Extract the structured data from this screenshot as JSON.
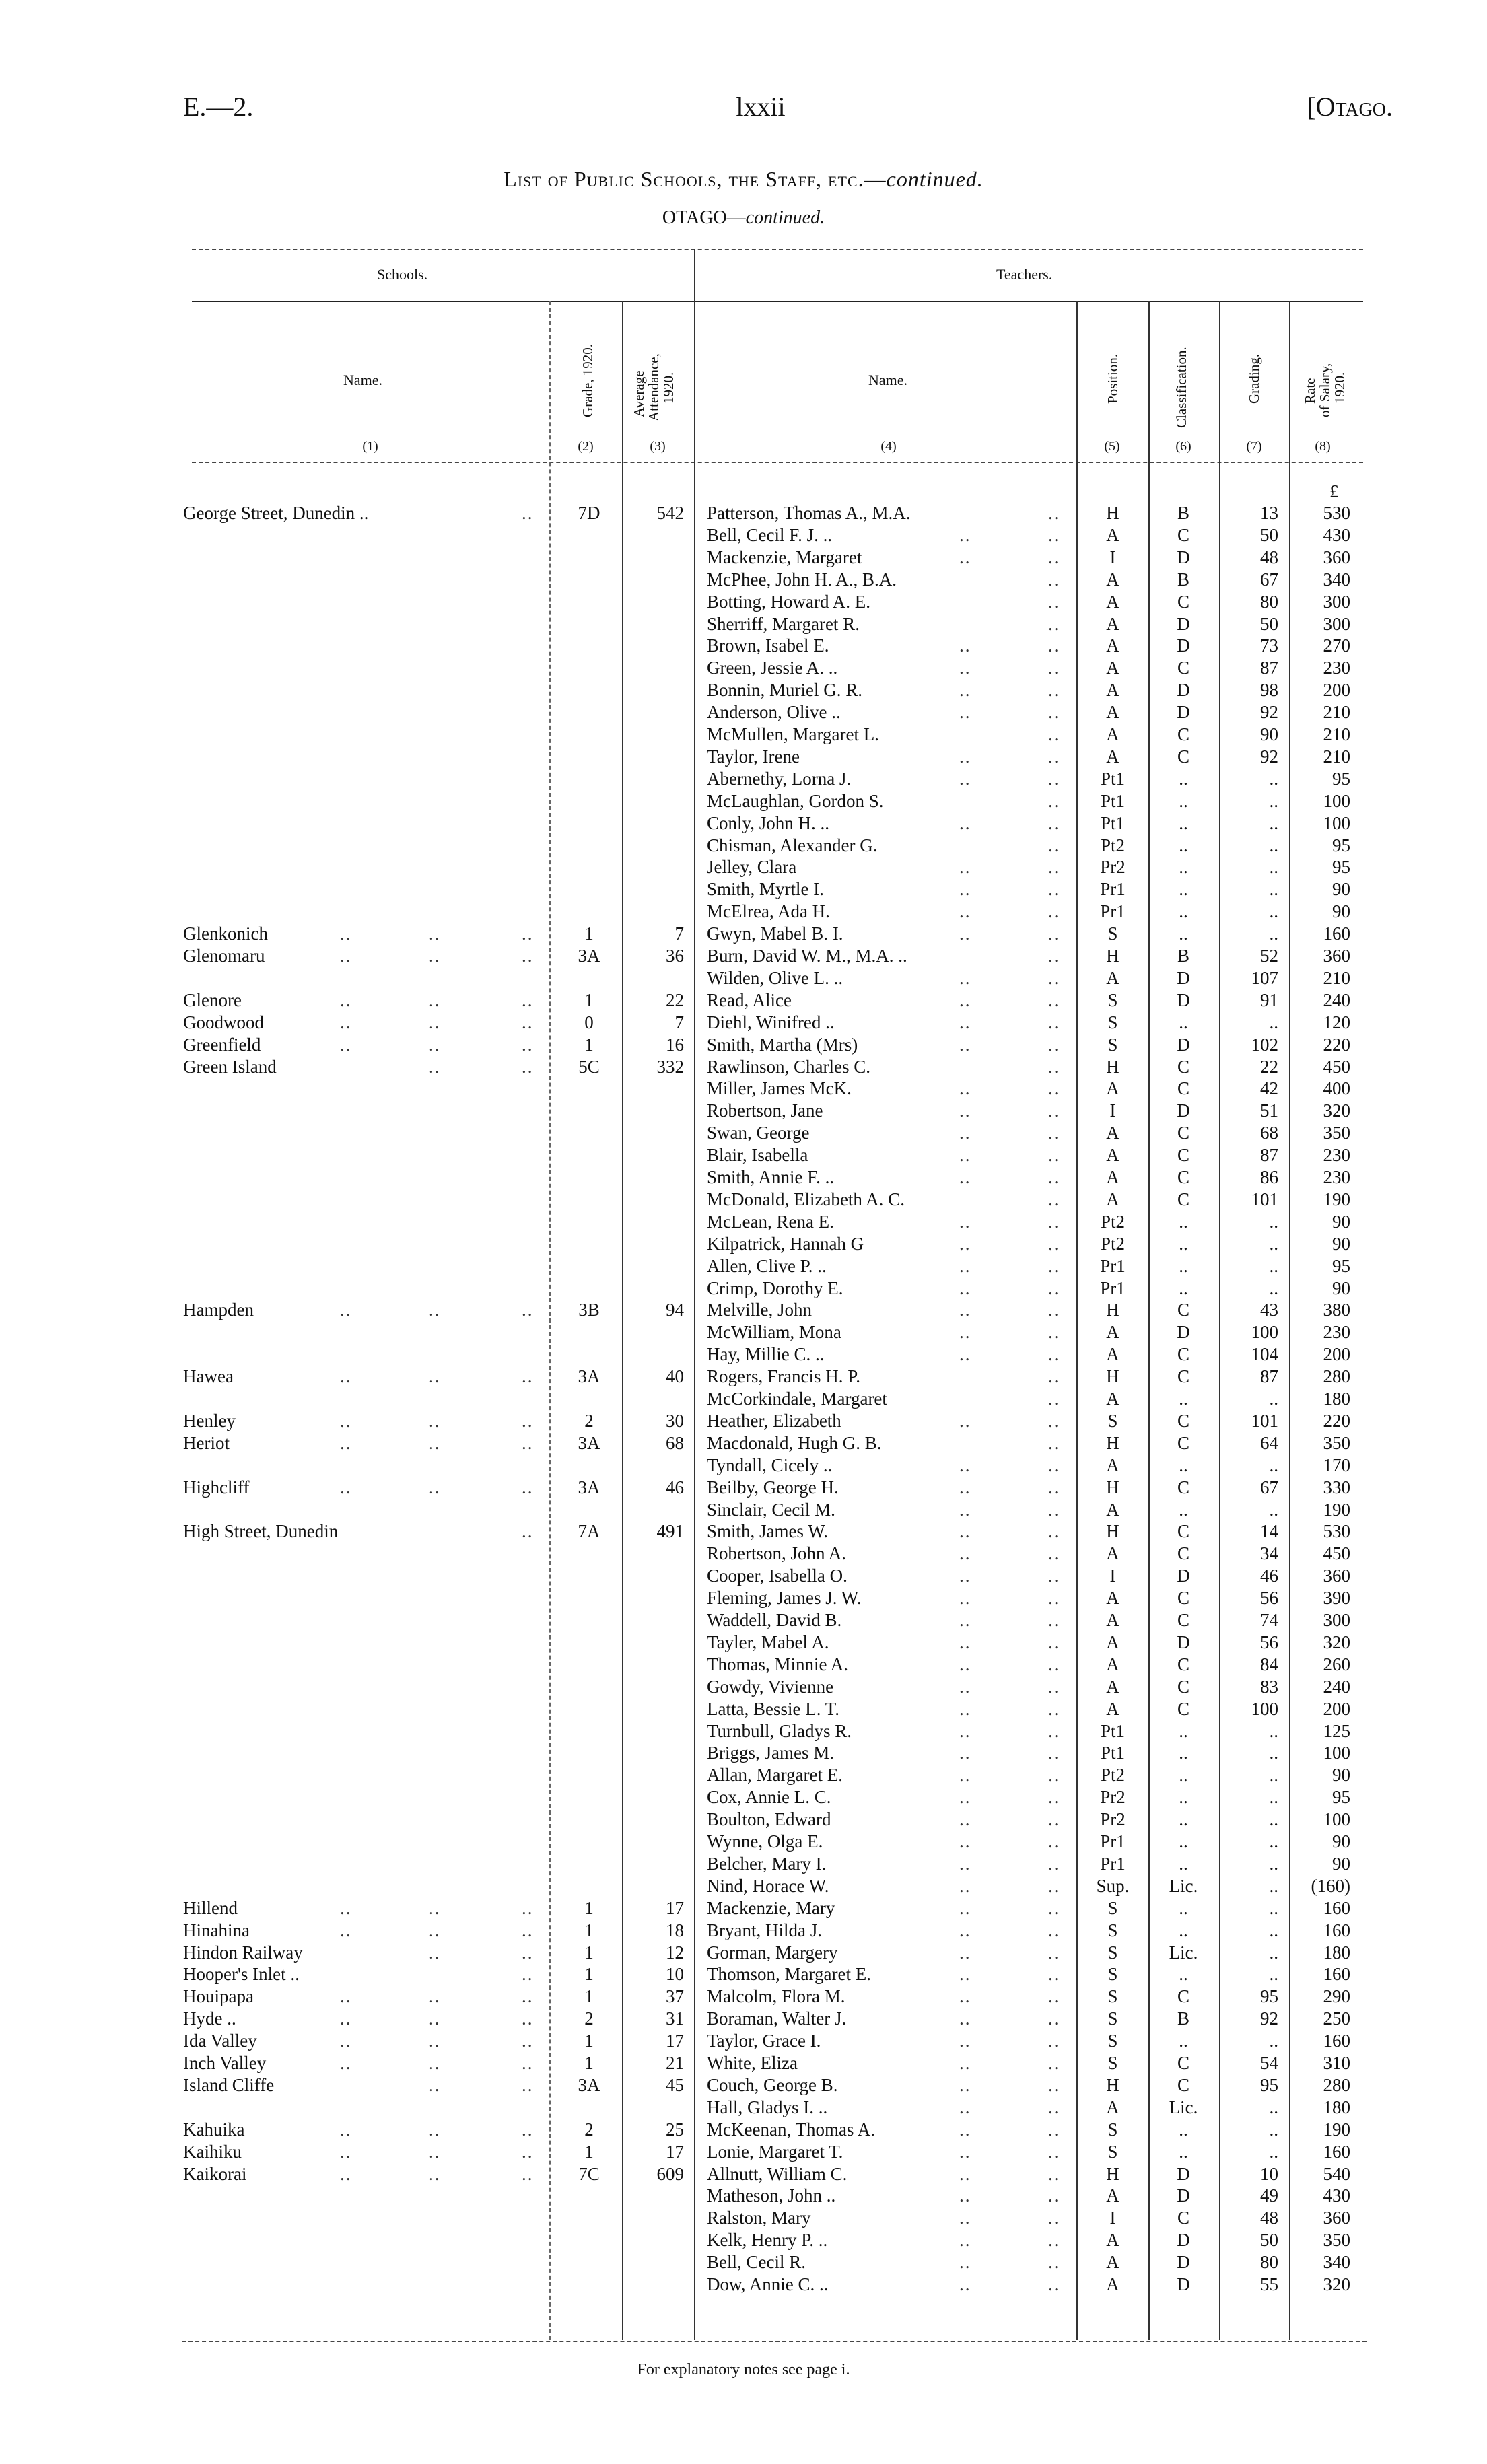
{
  "header": {
    "left": "E.—2.",
    "center": "lxxii",
    "right": "[Otago."
  },
  "title": {
    "main": "List of Public Schools, the Staff, etc.—",
    "main_italic": "continued.",
    "sub": "OTAGO—",
    "sub_italic": "continued."
  },
  "groups": {
    "schools": "Schools.",
    "teachers": "Teachers."
  },
  "columns": {
    "school_name": "Name.",
    "grade": "Grade, 1920.",
    "attendance_1": "Average",
    "attendance_2": "Attendance,",
    "attendance_3": "1920.",
    "teacher_name": "Name.",
    "position": "Position.",
    "classification": "Classification.",
    "grading": "Grading.",
    "salary_1": "Rate",
    "salary_2": "of Salary,",
    "salary_3": "1920.",
    "numbers": [
      "(1)",
      "(2)",
      "(3)",
      "(4)",
      "(5)",
      "(6)",
      "(7)",
      "(8)"
    ],
    "currency": "£"
  },
  "schools": [
    {
      "name": "George Street, Dunedin ..",
      "grade": "7D",
      "attendance": "542",
      "teachers": [
        [
          "Patterson, Thomas A., M.A.",
          "H",
          "B",
          "13",
          "530"
        ],
        [
          "Bell, Cecil F. J. ..",
          "A",
          "C",
          "50",
          "430"
        ],
        [
          "Mackenzie, Margaret",
          "I",
          "D",
          "48",
          "360"
        ],
        [
          "McPhee, John H. A., B.A.",
          "A",
          "B",
          "67",
          "340"
        ],
        [
          "Botting, Howard A. E.",
          "A",
          "C",
          "80",
          "300"
        ],
        [
          "Sherriff, Margaret R.",
          "A",
          "D",
          "50",
          "300"
        ],
        [
          "Brown, Isabel E.",
          "A",
          "D",
          "73",
          "270"
        ],
        [
          "Green, Jessie A. ..",
          "A",
          "C",
          "87",
          "230"
        ],
        [
          "Bonnin, Muriel G. R.",
          "A",
          "D",
          "98",
          "200"
        ],
        [
          "Anderson, Olive ..",
          "A",
          "D",
          "92",
          "210"
        ],
        [
          "McMullen, Margaret L.",
          "A",
          "C",
          "90",
          "210"
        ],
        [
          "Taylor, Irene",
          "A",
          "C",
          "92",
          "210"
        ],
        [
          "Abernethy, Lorna J.",
          "Pt1",
          "..",
          "..",
          "95"
        ],
        [
          "McLaughlan, Gordon S.",
          "Pt1",
          "..",
          "..",
          "100"
        ],
        [
          "Conly, John H. ..",
          "Pt1",
          "..",
          "..",
          "100"
        ],
        [
          "Chisman, Alexander G.",
          "Pt2",
          "..",
          "..",
          "95"
        ],
        [
          "Jelley, Clara",
          "Pr2",
          "..",
          "..",
          "95"
        ],
        [
          "Smith, Myrtle I.",
          "Pr1",
          "..",
          "..",
          "90"
        ],
        [
          "McElrea, Ada H.",
          "Pr1",
          "..",
          "..",
          "90"
        ]
      ]
    },
    {
      "name": "Glenkonich",
      "grade": "1",
      "attendance": "7",
      "teachers": [
        [
          "Gwyn, Mabel B. I.",
          "S",
          "..",
          "..",
          "160"
        ]
      ]
    },
    {
      "name": "Glenomaru",
      "grade": "3A",
      "attendance": "36",
      "teachers": [
        [
          "Burn, David W. M., M.A. ..",
          "H",
          "B",
          "52",
          "360"
        ],
        [
          "Wilden, Olive L. ..",
          "A",
          "D",
          "107",
          "210"
        ]
      ]
    },
    {
      "name": "Glenore",
      "grade": "1",
      "attendance": "22",
      "teachers": [
        [
          "Read, Alice",
          "S",
          "D",
          "91",
          "240"
        ]
      ]
    },
    {
      "name": "Goodwood",
      "grade": "0",
      "attendance": "7",
      "teachers": [
        [
          "Diehl, Winifred ..",
          "S",
          "..",
          "..",
          "120"
        ]
      ]
    },
    {
      "name": "Greenfield",
      "grade": "1",
      "attendance": "16",
      "teachers": [
        [
          "Smith, Martha (Mrs)",
          "S",
          "D",
          "102",
          "220"
        ]
      ]
    },
    {
      "name": "Green Island",
      "grade": "5C",
      "attendance": "332",
      "teachers": [
        [
          "Rawlinson, Charles C.",
          "H",
          "C",
          "22",
          "450"
        ],
        [
          "Miller, James McK.",
          "A",
          "C",
          "42",
          "400"
        ],
        [
          "Robertson, Jane",
          "I",
          "D",
          "51",
          "320"
        ],
        [
          "Swan, George",
          "A",
          "C",
          "68",
          "350"
        ],
        [
          "Blair, Isabella",
          "A",
          "C",
          "87",
          "230"
        ],
        [
          "Smith, Annie F. ..",
          "A",
          "C",
          "86",
          "230"
        ],
        [
          "McDonald, Elizabeth A. C.",
          "A",
          "C",
          "101",
          "190"
        ],
        [
          "McLean, Rena E.",
          "Pt2",
          "..",
          "..",
          "90"
        ],
        [
          "Kilpatrick, Hannah G",
          "Pt2",
          "..",
          "..",
          "90"
        ],
        [
          "Allen, Clive P. ..",
          "Pr1",
          "..",
          "..",
          "95"
        ],
        [
          "Crimp, Dorothy E.",
          "Pr1",
          "..",
          "..",
          "90"
        ]
      ]
    },
    {
      "name": "Hampden",
      "grade": "3B",
      "attendance": "94",
      "teachers": [
        [
          "Melville, John",
          "H",
          "C",
          "43",
          "380"
        ],
        [
          "McWilliam, Mona",
          "A",
          "D",
          "100",
          "230"
        ],
        [
          "Hay, Millie C. ..",
          "A",
          "C",
          "104",
          "200"
        ]
      ]
    },
    {
      "name": "Hawea",
      "grade": "3A",
      "attendance": "40",
      "teachers": [
        [
          "Rogers, Francis H. P.",
          "H",
          "C",
          "87",
          "280"
        ],
        [
          "McCorkindale, Margaret",
          "A",
          "..",
          "..",
          "180"
        ]
      ]
    },
    {
      "name": "Henley",
      "grade": "2",
      "attendance": "30",
      "teachers": [
        [
          "Heather, Elizabeth",
          "S",
          "C",
          "101",
          "220"
        ]
      ]
    },
    {
      "name": "Heriot",
      "grade": "3A",
      "attendance": "68",
      "teachers": [
        [
          "Macdonald, Hugh G. B.",
          "H",
          "C",
          "64",
          "350"
        ],
        [
          "Tyndall, Cicely ..",
          "A",
          "..",
          "..",
          "170"
        ]
      ]
    },
    {
      "name": "Highcliff",
      "grade": "3A",
      "attendance": "46",
      "teachers": [
        [
          "Beilby, George H.",
          "H",
          "C",
          "67",
          "330"
        ],
        [
          "Sinclair, Cecil M.",
          "A",
          "..",
          "..",
          "190"
        ]
      ]
    },
    {
      "name": "High Street, Dunedin",
      "grade": "7A",
      "attendance": "491",
      "teachers": [
        [
          "Smith, James W.",
          "H",
          "C",
          "14",
          "530"
        ],
        [
          "Robertson, John A.",
          "A",
          "C",
          "34",
          "450"
        ],
        [
          "Cooper, Isabella O.",
          "I",
          "D",
          "46",
          "360"
        ],
        [
          "Fleming, James J. W.",
          "A",
          "C",
          "56",
          "390"
        ],
        [
          "Waddell, David B.",
          "A",
          "C",
          "74",
          "300"
        ],
        [
          "Tayler, Mabel A.",
          "A",
          "D",
          "56",
          "320"
        ],
        [
          "Thomas, Minnie A.",
          "A",
          "C",
          "84",
          "260"
        ],
        [
          "Gowdy, Vivienne",
          "A",
          "C",
          "83",
          "240"
        ],
        [
          "Latta, Bessie L. T.",
          "A",
          "C",
          "100",
          "200"
        ],
        [
          "Turnbull, Gladys R.",
          "Pt1",
          "..",
          "..",
          "125"
        ],
        [
          "Briggs, James M.",
          "Pt1",
          "..",
          "..",
          "100"
        ],
        [
          "Allan, Margaret E.",
          "Pt2",
          "..",
          "..",
          "90"
        ],
        [
          "Cox, Annie L. C.",
          "Pr2",
          "..",
          "..",
          "95"
        ],
        [
          "Boulton, Edward",
          "Pr2",
          "..",
          "..",
          "100"
        ],
        [
          "Wynne, Olga E.",
          "Pr1",
          "..",
          "..",
          "90"
        ],
        [
          "Belcher, Mary I.",
          "Pr1",
          "..",
          "..",
          "90"
        ],
        [
          "Nind, Horace W.",
          "Sup.",
          "Lic.",
          "..",
          "(160)"
        ]
      ]
    },
    {
      "name": "Hillend",
      "grade": "1",
      "attendance": "17",
      "teachers": [
        [
          "Mackenzie, Mary",
          "S",
          "..",
          "..",
          "160"
        ]
      ]
    },
    {
      "name": "Hinahina",
      "grade": "1",
      "attendance": "18",
      "teachers": [
        [
          "Bryant, Hilda J.",
          "S",
          "..",
          "..",
          "160"
        ]
      ]
    },
    {
      "name": "Hindon Railway",
      "grade": "1",
      "attendance": "12",
      "teachers": [
        [
          "Gorman, Margery",
          "S",
          "Lic.",
          "..",
          "180"
        ]
      ]
    },
    {
      "name": "Hooper's Inlet ..",
      "grade": "1",
      "attendance": "10",
      "teachers": [
        [
          "Thomson, Margaret E.",
          "S",
          "..",
          "..",
          "160"
        ]
      ]
    },
    {
      "name": "Houipapa",
      "grade": "1",
      "attendance": "37",
      "teachers": [
        [
          "Malcolm, Flora M.",
          "S",
          "C",
          "95",
          "290"
        ]
      ]
    },
    {
      "name": "Hyde ..",
      "grade": "2",
      "attendance": "31",
      "teachers": [
        [
          "Boraman, Walter J.",
          "S",
          "B",
          "92",
          "250"
        ]
      ]
    },
    {
      "name": "Ida Valley",
      "grade": "1",
      "attendance": "17",
      "teachers": [
        [
          "Taylor, Grace I.",
          "S",
          "..",
          "..",
          "160"
        ]
      ]
    },
    {
      "name": "Inch Valley",
      "grade": "1",
      "attendance": "21",
      "teachers": [
        [
          "White, Eliza",
          "S",
          "C",
          "54",
          "310"
        ]
      ]
    },
    {
      "name": "Island Cliffe",
      "grade": "3A",
      "attendance": "45",
      "teachers": [
        [
          "Couch, George B.",
          "H",
          "C",
          "95",
          "280"
        ],
        [
          "Hall, Gladys I. ..",
          "A",
          "Lic.",
          "..",
          "180"
        ]
      ]
    },
    {
      "name": "Kahuika",
      "grade": "2",
      "attendance": "25",
      "teachers": [
        [
          "McKeenan, Thomas A.",
          "S",
          "..",
          "..",
          "190"
        ]
      ]
    },
    {
      "name": "Kaihiku",
      "grade": "1",
      "attendance": "17",
      "teachers": [
        [
          "Lonie, Margaret T.",
          "S",
          "..",
          "..",
          "160"
        ]
      ]
    },
    {
      "name": "Kaikorai",
      "grade": "7C",
      "attendance": "609",
      "teachers": [
        [
          "Allnutt, William C.",
          "H",
          "D",
          "10",
          "540"
        ],
        [
          "Matheson, John ..",
          "A",
          "D",
          "49",
          "430"
        ],
        [
          "Ralston, Mary",
          "I",
          "C",
          "48",
          "360"
        ],
        [
          "Kelk, Henry P. ..",
          "A",
          "D",
          "50",
          "350"
        ],
        [
          "Bell, Cecil R.",
          "A",
          "D",
          "80",
          "340"
        ],
        [
          "Dow, Annie C. ..",
          "A",
          "D",
          "55",
          "320"
        ]
      ]
    }
  ],
  "footer": "For explanatory notes see page i."
}
